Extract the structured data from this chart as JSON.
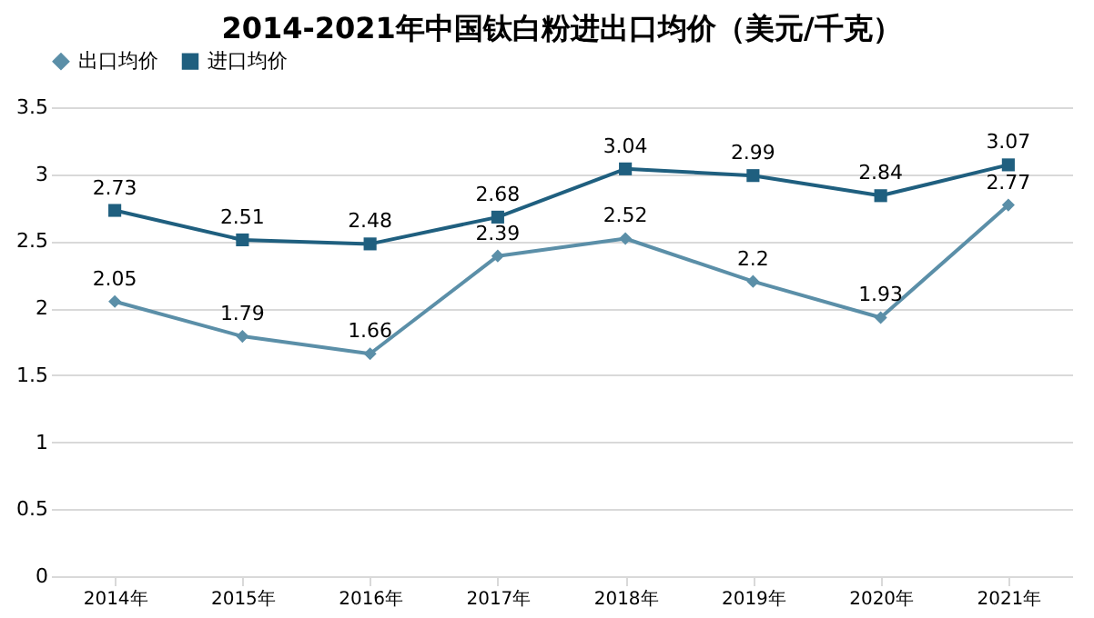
{
  "chart_data": {
    "type": "line",
    "title": "2014-2021年中国钛白粉进出口均价（美元/千克）",
    "categories": [
      "2014年",
      "2015年",
      "2016年",
      "2017年",
      "2018年",
      "2019年",
      "2020年",
      "2021年"
    ],
    "series": [
      {
        "name": "出口均价",
        "color": "#5b8fa8",
        "marker": "diamond",
        "values": [
          2.05,
          1.79,
          1.66,
          2.39,
          2.52,
          2.2,
          1.93,
          2.77
        ]
      },
      {
        "name": "进口均价",
        "color": "#1f5f7f",
        "marker": "square",
        "values": [
          2.73,
          2.51,
          2.48,
          2.68,
          3.04,
          2.99,
          2.84,
          3.07
        ]
      }
    ],
    "ylim": [
      0,
      3.5
    ],
    "yticks": [
      0,
      0.5,
      1,
      1.5,
      2,
      2.5,
      3,
      3.5
    ],
    "grid": "y",
    "legend": "top",
    "data_labels": true,
    "line_style": "solid"
  }
}
